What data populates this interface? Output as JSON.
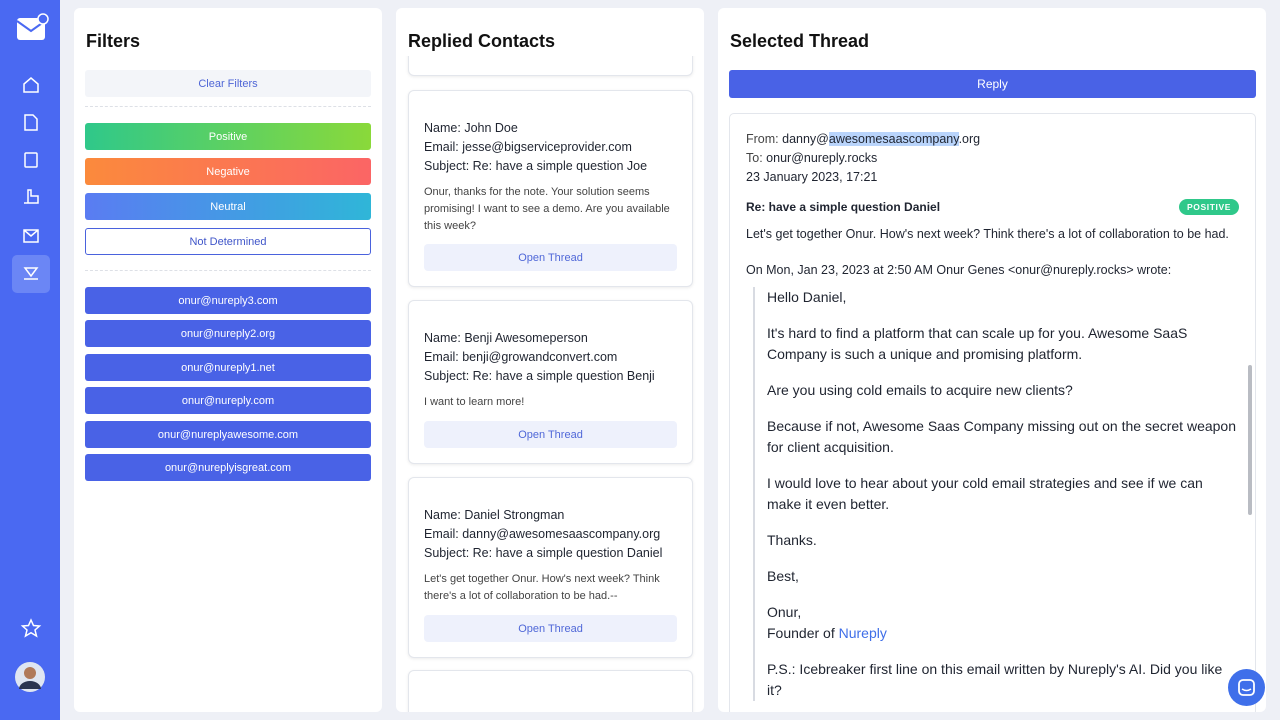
{
  "filters": {
    "title": "Filters",
    "clear": "Clear Filters",
    "sentiments": [
      "Positive",
      "Negative",
      "Neutral",
      "Not Determined"
    ],
    "mailboxes": [
      "onur@nureply3.com",
      "onur@nureply2.org",
      "onur@nureply1.net",
      "onur@nureply.com",
      "onur@nureplyawesome.com",
      "onur@nureplyisgreat.com"
    ]
  },
  "contacts": {
    "title": "Replied Contacts",
    "name_label": "Name:",
    "email_label": "Email:",
    "subject_label": "Subject:",
    "open_button": "Open Thread",
    "items": [
      {
        "name": "John Doe",
        "email": "jesse@bigserviceprovider.com",
        "subject": "Re: have a simple question Joe",
        "snippet": "Onur, thanks for the note. Your solution seems promising! I want to see a demo. Are you available this week?"
      },
      {
        "name": "Benji Awesomeperson",
        "email": "benji@growandconvert.com",
        "subject": "Re: have a simple question Benji",
        "snippet": "I want to learn more!"
      },
      {
        "name": "Daniel Strongman",
        "email": "danny@awesomesaascompany.org",
        "subject": "Re: have a simple question Daniel",
        "snippet": "Let's get together Onur. How's next week? Think there's a lot of collaboration to be had.--"
      }
    ]
  },
  "thread": {
    "title": "Selected Thread",
    "reply": "Reply",
    "from_label": "From:",
    "from_user": "danny@",
    "from_highlight": "awesomesaascompany",
    "from_domain": ".org",
    "to_label": "To:",
    "to": "onur@nureply.rocks",
    "date": "23 January 2023, 17:21",
    "subject": "Re: have a simple question Daniel",
    "badge": "POSITIVE",
    "body": "Let's get together Onur. How's next week? Think there's a lot of collaboration to be had.",
    "quote_header": "On Mon, Jan 23, 2023 at 2:50 AM Onur Genes <onur@nureply.rocks> wrote:",
    "quote": [
      "Hello Daniel,",
      "It's hard to find a platform that can scale up for you. Awesome SaaS Company is such a unique and promising platform.",
      "Are you using cold emails to acquire new clients?",
      "Because if not, Awesome Saas Company missing out on the secret weapon for client acquisition.",
      "I would love to hear about your cold email strategies and see if we can make it even better.",
      "Thanks.",
      "Best,"
    ],
    "signoff": "Onur,",
    "founder": "Founder of ",
    "link": "Nureply",
    "ps": "P.S.: Icebreaker first line on this email written by Nureply's AI. Did you like it?"
  }
}
